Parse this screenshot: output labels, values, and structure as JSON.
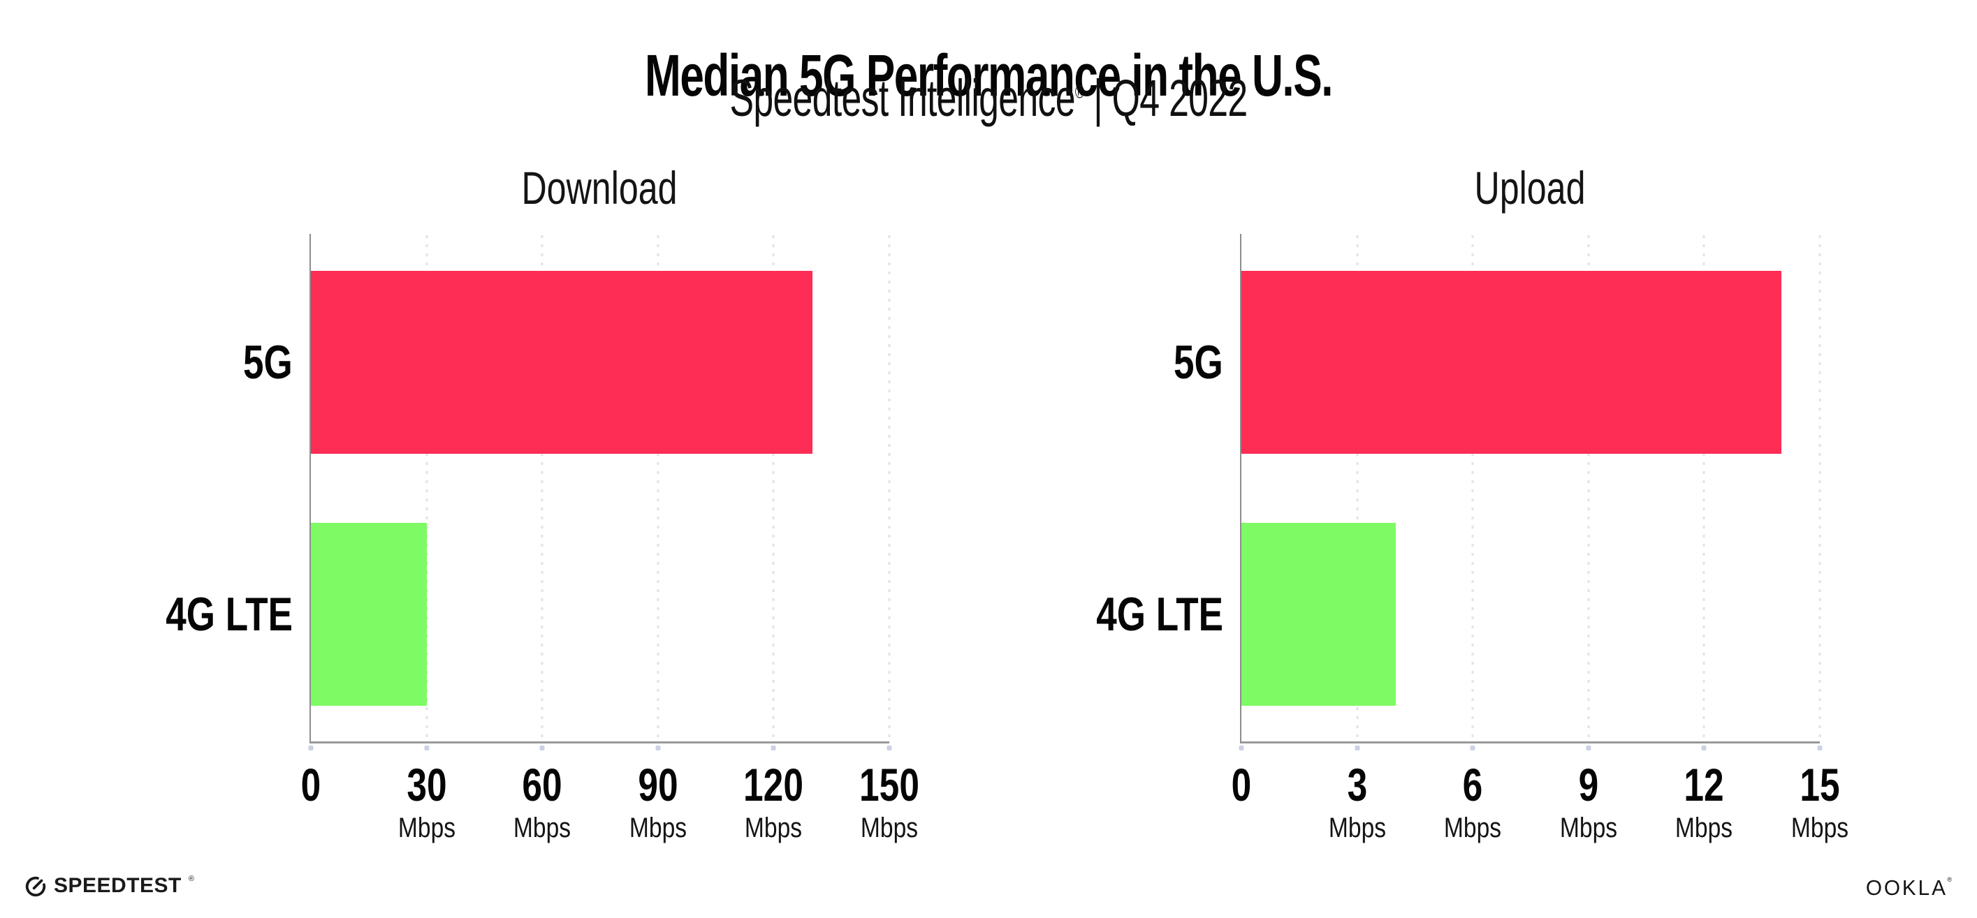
{
  "header": {
    "title": "Median 5G Performance in the U.S.",
    "subtitle_brand": "Speedtest Intelligence",
    "subtitle_reg": "®",
    "subtitle_rest": " | Q4 2022"
  },
  "chart_data": [
    {
      "type": "bar",
      "orientation": "horizontal",
      "title": "Download",
      "categories": [
        "5G",
        "4G LTE"
      ],
      "values": [
        130,
        30
      ],
      "unit": "Mbps",
      "xlabel": "",
      "ylabel": "",
      "xlim": [
        0,
        150
      ],
      "xticks": [
        0,
        30,
        60,
        90,
        120,
        150
      ],
      "bar_colors": [
        "#fd2d55",
        "#7dfa64"
      ],
      "grid": "vertical-dotted",
      "legend": "none"
    },
    {
      "type": "bar",
      "orientation": "horizontal",
      "title": "Upload",
      "categories": [
        "5G",
        "4G LTE"
      ],
      "values": [
        14,
        4
      ],
      "unit": "Mbps",
      "xlabel": "",
      "ylabel": "",
      "xlim": [
        0,
        15
      ],
      "xticks": [
        0,
        3,
        6,
        9,
        12,
        15
      ],
      "bar_colors": [
        "#fd2d55",
        "#7dfa64"
      ],
      "grid": "vertical-dotted",
      "legend": "none"
    }
  ],
  "colors": {
    "bar_5g": "#fd2d55",
    "bar_4g_lte": "#7dfa64",
    "gridline": "#e1e2ee",
    "axis": "#8d8d8d",
    "text": "#0c0c0c"
  },
  "footer": {
    "speedtest_text": "SPEEDTEST",
    "speedtest_reg": "®",
    "ookla_text": "OOKLA",
    "ookla_reg": "®"
  }
}
